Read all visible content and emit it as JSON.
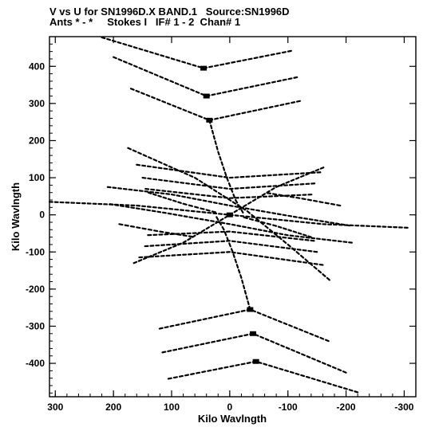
{
  "header": {
    "line1": "V vs U for SN1996D.X BAND.1   Source:SN1996D",
    "line2": "Ants * - *     Stokes I   IF# 1 - 2  Chan# 1"
  },
  "chart_data": {
    "type": "scatter",
    "title": "V vs U for SN1996D.X BAND.1   Source:SN1996D",
    "subtitle": "Ants * - *     Stokes I   IF# 1 - 2  Chan# 1",
    "xlabel": "Kilo Wavlngth",
    "ylabel": "Kilo Wavlngth",
    "xlim": [
      310,
      -320
    ],
    "ylim": [
      -490,
      480
    ],
    "xticks": [
      300,
      200,
      100,
      0,
      -100,
      -200,
      -300
    ],
    "yticks": [
      -400,
      -300,
      -200,
      -100,
      0,
      100,
      200,
      300,
      400
    ],
    "grid": false,
    "legend": "none",
    "color": "#000000",
    "tracks": [
      {
        "x": [
          220,
          45,
          -110
        ],
        "y": [
          478,
          395,
          443
        ]
      },
      {
        "x": [
          200,
          40,
          -120
        ],
        "y": [
          425,
          320,
          372
        ]
      },
      {
        "x": [
          170,
          35,
          -125
        ],
        "y": [
          340,
          255,
          308
        ]
      },
      {
        "x": [
          -220,
          -45,
          110
        ],
        "y": [
          -478,
          -395,
          -443
        ]
      },
      {
        "x": [
          -200,
          -40,
          120
        ],
        "y": [
          -425,
          -320,
          -372
        ]
      },
      {
        "x": [
          -170,
          -35,
          125
        ],
        "y": [
          -340,
          -255,
          -308
        ]
      },
      {
        "x": [
          35,
          20,
          5,
          -10,
          -25
        ],
        "y": [
          255,
          170,
          100,
          40,
          0
        ]
      },
      {
        "x": [
          -35,
          -20,
          -5,
          10,
          25
        ],
        "y": [
          -255,
          -170,
          -100,
          -40,
          0
        ]
      },
      {
        "x": [
          310,
          160,
          0,
          -160,
          -310
        ],
        "y": [
          35,
          25,
          0,
          -25,
          -35
        ]
      },
      {
        "x": [
          175,
          60,
          -30,
          -100,
          -175
        ],
        "y": [
          180,
          100,
          10,
          -80,
          -180
        ]
      },
      {
        "x": [
          165,
          80,
          0,
          -80,
          -165
        ],
        "y": [
          -130,
          -75,
          0,
          75,
          130
        ]
      },
      {
        "x": [
          160,
          0,
          -160
        ],
        "y": [
          135,
          100,
          115
        ]
      },
      {
        "x": [
          150,
          0,
          -150
        ],
        "y": [
          100,
          70,
          85
        ]
      },
      {
        "x": [
          145,
          0,
          -145
        ],
        "y": [
          70,
          45,
          55
        ]
      },
      {
        "x": [
          -160,
          0,
          160
        ],
        "y": [
          -135,
          -100,
          -115
        ]
      },
      {
        "x": [
          -150,
          0,
          150
        ],
        "y": [
          -100,
          -70,
          -85
        ]
      },
      {
        "x": [
          -145,
          0,
          145
        ],
        "y": [
          -70,
          -45,
          -55
        ]
      },
      {
        "x": [
          210,
          100,
          0,
          -110,
          -210
        ],
        "y": [
          75,
          55,
          25,
          -5,
          -30
        ]
      },
      {
        "x": [
          -210,
          -100,
          0,
          110,
          210
        ],
        "y": [
          -75,
          -55,
          -25,
          5,
          30
        ]
      },
      {
        "x": [
          190,
          120,
          60
        ],
        "y": [
          -25,
          -45,
          -60
        ]
      },
      {
        "x": [
          -190,
          -120,
          -60
        ],
        "y": [
          25,
          45,
          60
        ]
      },
      {
        "x": [
          140,
          80,
          20
        ],
        "y": [
          60,
          30,
          5
        ]
      },
      {
        "x": [
          -140,
          -80,
          -20
        ],
        "y": [
          -60,
          -30,
          -5
        ]
      }
    ]
  }
}
